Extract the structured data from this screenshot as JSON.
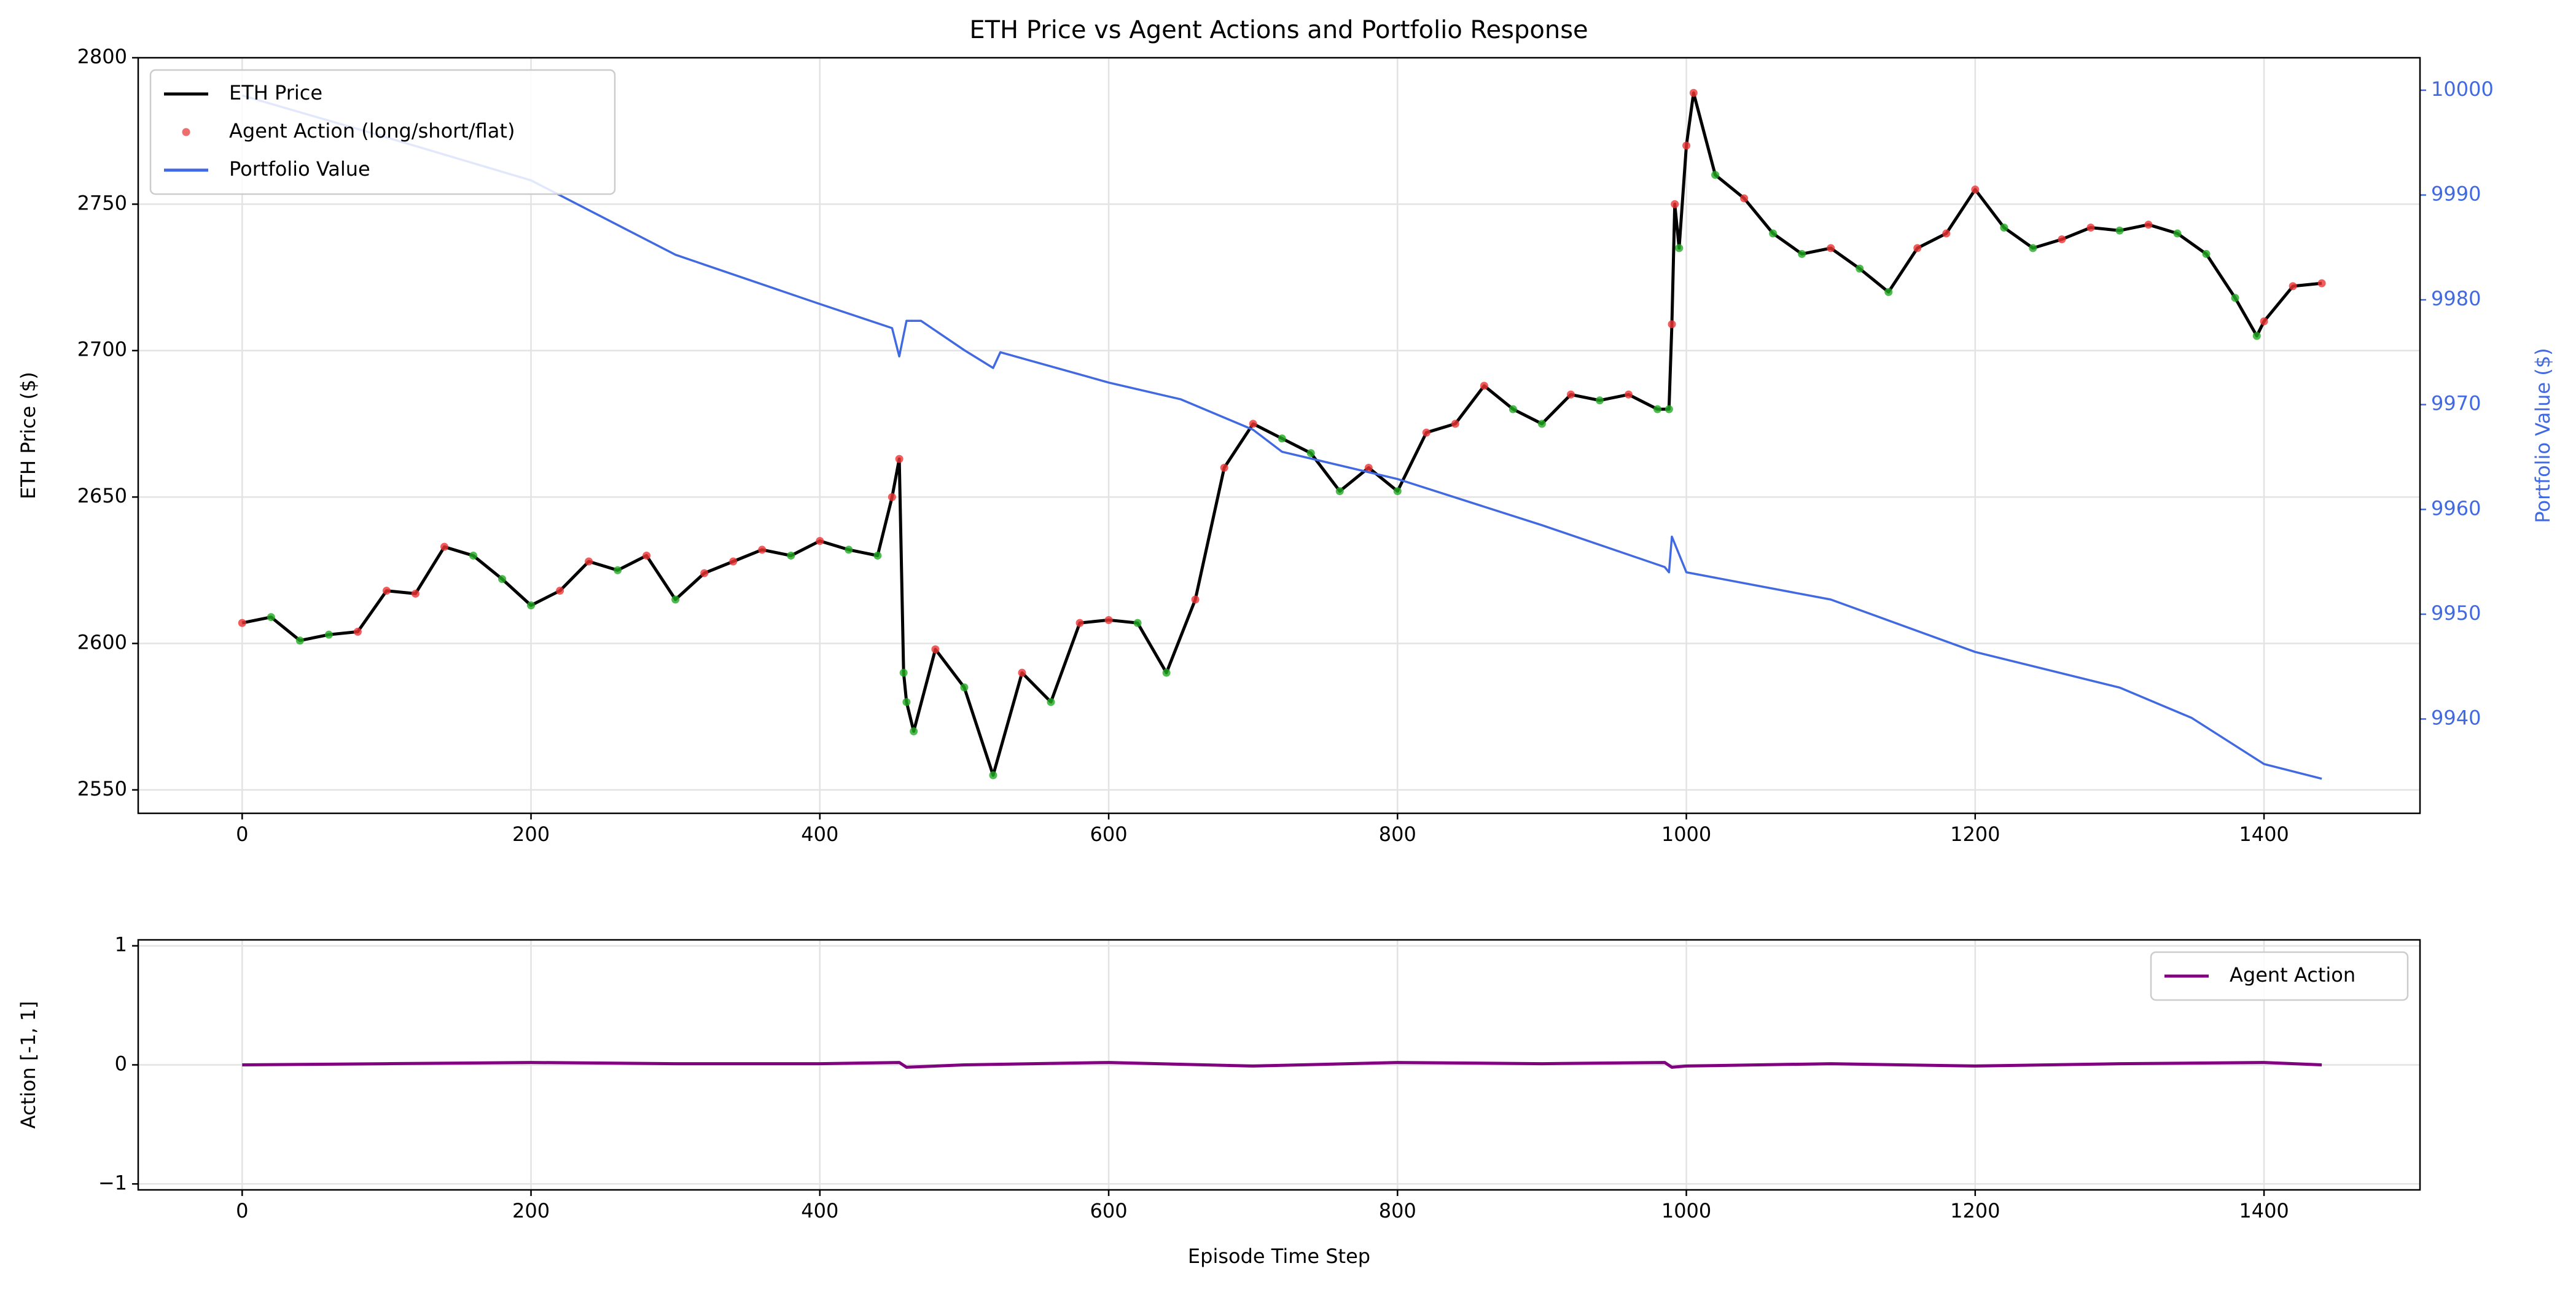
{
  "chart_data": [
    {
      "type": "line",
      "title": "ETH Price vs Agent Actions and Portfolio Response",
      "ylabel": "ETH Price ($)",
      "y2label": "Portfolio Value ($)",
      "xlim": [
        -72,
        1508
      ],
      "xticks": [
        0,
        200,
        400,
        600,
        800,
        1000,
        1200,
        1400
      ],
      "ylim": [
        2542,
        2800
      ],
      "yticks": [
        2550,
        2600,
        2650,
        2700,
        2750,
        2800
      ],
      "y2lim": [
        9931,
        10003.1
      ],
      "y2ticks": [
        9940,
        9950,
        9960,
        9970,
        9980,
        9990,
        10000
      ],
      "grid": true,
      "legend": "upper left",
      "y2color": "#4169e1",
      "series": [
        {
          "name": "ETH Price",
          "type": "line",
          "color": "#000000",
          "x": [
            0,
            20,
            40,
            60,
            80,
            100,
            120,
            140,
            160,
            180,
            200,
            220,
            240,
            260,
            280,
            300,
            320,
            340,
            360,
            380,
            400,
            420,
            440,
            450,
            455,
            458,
            460,
            465,
            480,
            500,
            520,
            540,
            560,
            580,
            600,
            620,
            640,
            660,
            680,
            700,
            720,
            740,
            760,
            780,
            800,
            820,
            840,
            860,
            880,
            900,
            920,
            940,
            960,
            980,
            988,
            990,
            992,
            995,
            1000,
            1005,
            1020,
            1040,
            1060,
            1080,
            1100,
            1120,
            1140,
            1160,
            1180,
            1200,
            1220,
            1240,
            1260,
            1280,
            1300,
            1320,
            1340,
            1360,
            1380,
            1395,
            1400,
            1420,
            1440
          ],
          "values": [
            2607,
            2609,
            2601,
            2603,
            2604,
            2618,
            2617,
            2633,
            2630,
            2622,
            2613,
            2618,
            2628,
            2625,
            2630,
            2615,
            2624,
            2628,
            2632,
            2630,
            2635,
            2632,
            2630,
            2650,
            2663,
            2590,
            2580,
            2570,
            2598,
            2585,
            2555,
            2590,
            2580,
            2607,
            2608,
            2607,
            2590,
            2615,
            2660,
            2675,
            2670,
            2665,
            2652,
            2660,
            2652,
            2672,
            2675,
            2688,
            2680,
            2675,
            2685,
            2683,
            2685,
            2680,
            2680,
            2709,
            2750,
            2735,
            2770,
            2788,
            2760,
            2752,
            2740,
            2733,
            2735,
            2728,
            2720,
            2735,
            2740,
            2755,
            2742,
            2735,
            2738,
            2742,
            2741,
            2743,
            2740,
            2733,
            2718,
            2705,
            2710,
            2722,
            2723
          ]
        },
        {
          "name": "Agent Action (long/short/flat)",
          "type": "scatter",
          "color": "#e84a4a",
          "x": [
            0,
            20,
            40,
            60,
            80,
            100,
            120,
            140,
            160,
            180,
            200,
            220,
            240,
            260,
            280,
            300,
            320,
            340,
            360,
            380,
            400,
            420,
            440,
            450,
            455,
            458,
            460,
            465,
            480,
            500,
            520,
            540,
            560,
            580,
            600,
            620,
            640,
            660,
            680,
            700,
            720,
            740,
            760,
            780,
            800,
            820,
            840,
            860,
            880,
            900,
            920,
            940,
            960,
            980,
            988,
            990,
            992,
            995,
            1000,
            1005,
            1020,
            1040,
            1060,
            1080,
            1100,
            1120,
            1140,
            1160,
            1180,
            1200,
            1220,
            1240,
            1260,
            1280,
            1300,
            1320,
            1340,
            1360,
            1380,
            1395,
            1400,
            1420,
            1440
          ],
          "values": [
            2607,
            2609,
            2601,
            2603,
            2604,
            2618,
            2617,
            2633,
            2630,
            2622,
            2613,
            2618,
            2628,
            2625,
            2630,
            2615,
            2624,
            2628,
            2632,
            2630,
            2635,
            2632,
            2630,
            2650,
            2663,
            2590,
            2580,
            2570,
            2598,
            2585,
            2555,
            2590,
            2580,
            2607,
            2608,
            2607,
            2590,
            2615,
            2660,
            2675,
            2670,
            2665,
            2652,
            2660,
            2652,
            2672,
            2675,
            2688,
            2680,
            2675,
            2685,
            2683,
            2685,
            2680,
            2680,
            2709,
            2750,
            2735,
            2770,
            2788,
            2760,
            2752,
            2740,
            2733,
            2735,
            2728,
            2720,
            2735,
            2740,
            2755,
            2742,
            2735,
            2738,
            2742,
            2741,
            2743,
            2740,
            2733,
            2718,
            2705,
            2710,
            2722,
            2723
          ],
          "colors": [
            "#e33",
            "#2a2",
            "#2a2",
            "#2a2",
            "#e33",
            "#e33",
            "#e33",
            "#e33",
            "#2a2",
            "#2a2",
            "#2a2",
            "#e33",
            "#e33",
            "#2a2",
            "#e33",
            "#2a2",
            "#e33",
            "#e33",
            "#e33",
            "#2a2",
            "#e33",
            "#2a2",
            "#2a2",
            "#e33",
            "#e33",
            "#2a2",
            "#2a2",
            "#2a2",
            "#e33",
            "#2a2",
            "#2a2",
            "#e33",
            "#2a2",
            "#e33",
            "#e33",
            "#2a2",
            "#2a2",
            "#e33",
            "#e33",
            "#e33",
            "#2a2",
            "#2a2",
            "#2a2",
            "#e33",
            "#2a2",
            "#e33",
            "#e33",
            "#e33",
            "#2a2",
            "#2a2",
            "#e33",
            "#2a2",
            "#e33",
            "#2a2",
            "#2a2",
            "#e33",
            "#e33",
            "#2a2",
            "#e33",
            "#e33",
            "#2a2",
            "#e33",
            "#2a2",
            "#2a2",
            "#e33",
            "#2a2",
            "#2a2",
            "#e33",
            "#e33",
            "#e33",
            "#2a2",
            "#2a2",
            "#e33",
            "#e33",
            "#2a2",
            "#e33",
            "#2a2",
            "#2a2",
            "#2a2",
            "#2a2",
            "#e33",
            "#e33",
            "#e33"
          ]
        },
        {
          "name": "Portfolio Value",
          "type": "line",
          "color": "#4169e1",
          "axis": "y2",
          "x": [
            0,
            100,
            200,
            300,
            400,
            450,
            455,
            460,
            470,
            500,
            520,
            525,
            600,
            650,
            700,
            720,
            800,
            900,
            985,
            988,
            990,
            1000,
            1100,
            1200,
            1300,
            1350,
            1400,
            1440
          ],
          "values": [
            9999.5,
            9995.5,
            9991.4,
            9984.3,
            9979.6,
            9977.3,
            9974.6,
            9978,
            9978,
            9975.2,
            9973.5,
            9975,
            9972.1,
            9970.5,
            9967.6,
            9965.5,
            9962.9,
            9958.5,
            9954.5,
            9954,
            9957.4,
            9954,
            9951.4,
            9946.4,
            9943,
            9940.1,
            9935.7,
            9934.3
          ]
        }
      ]
    },
    {
      "type": "line",
      "xlabel": "Episode Time Step",
      "ylabel": "Action [-1, 1]",
      "xlim": [
        -72,
        1508
      ],
      "xticks": [
        0,
        200,
        400,
        600,
        800,
        1000,
        1200,
        1400
      ],
      "ylim": [
        -1.05,
        1.05
      ],
      "yticks": [
        {
          "value": -1,
          "label": "−1"
        },
        0,
        1
      ],
      "grid": true,
      "legend": "upper right",
      "series": [
        {
          "name": "Agent Action",
          "type": "line",
          "color": "#800080",
          "x": [
            0,
            100,
            200,
            300,
            400,
            455,
            460,
            500,
            600,
            700,
            800,
            900,
            985,
            990,
            1000,
            1100,
            1200,
            1300,
            1400,
            1440
          ],
          "values": [
            0,
            0.01,
            0.02,
            0.01,
            0.01,
            0.02,
            -0.02,
            0,
            0.02,
            -0.01,
            0.02,
            0.01,
            0.02,
            -0.02,
            -0.01,
            0.01,
            -0.01,
            0.01,
            0.02,
            0
          ]
        }
      ]
    }
  ]
}
